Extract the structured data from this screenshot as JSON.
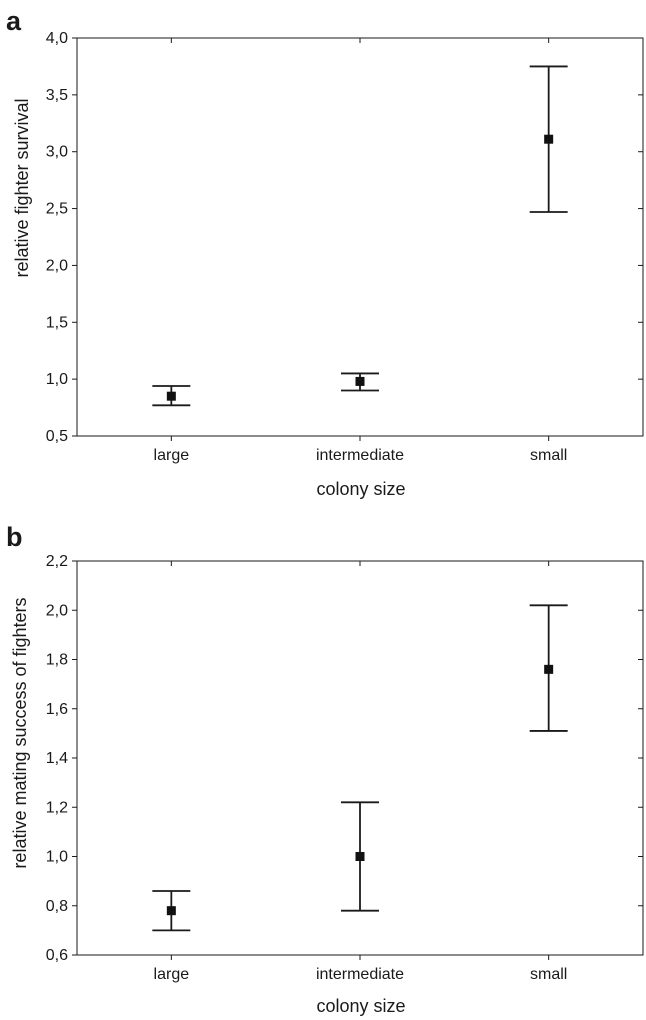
{
  "chart_data": [
    {
      "panel": "a",
      "type": "scatter",
      "xlabel": "colony size",
      "ylabel": "relative fighter survival",
      "categories": [
        "large",
        "intermediate",
        "small"
      ],
      "ylim": [
        0.5,
        4.0
      ],
      "yticks": [
        "0,5",
        "1,0",
        "1,5",
        "2,0",
        "2,5",
        "3,0",
        "3,5",
        "4,0"
      ],
      "grid": false,
      "series": [
        {
          "means": [
            0.85,
            0.98,
            3.11
          ],
          "lower": [
            0.77,
            0.9,
            2.47
          ],
          "upper": [
            0.94,
            1.05,
            3.75
          ]
        }
      ]
    },
    {
      "panel": "b",
      "type": "scatter",
      "xlabel": "colony size",
      "ylabel": "relative mating success of fighters",
      "categories": [
        "large",
        "intermediate",
        "small"
      ],
      "ylim": [
        0.6,
        2.2
      ],
      "yticks": [
        "0,6",
        "0,8",
        "1,0",
        "1,2",
        "1,4",
        "1,6",
        "1,8",
        "2,0",
        "2,2"
      ],
      "grid": false,
      "series": [
        {
          "means": [
            0.78,
            1.0,
            1.76
          ],
          "lower": [
            0.7,
            0.78,
            1.51
          ],
          "upper": [
            0.86,
            1.22,
            2.02
          ]
        }
      ]
    }
  ]
}
